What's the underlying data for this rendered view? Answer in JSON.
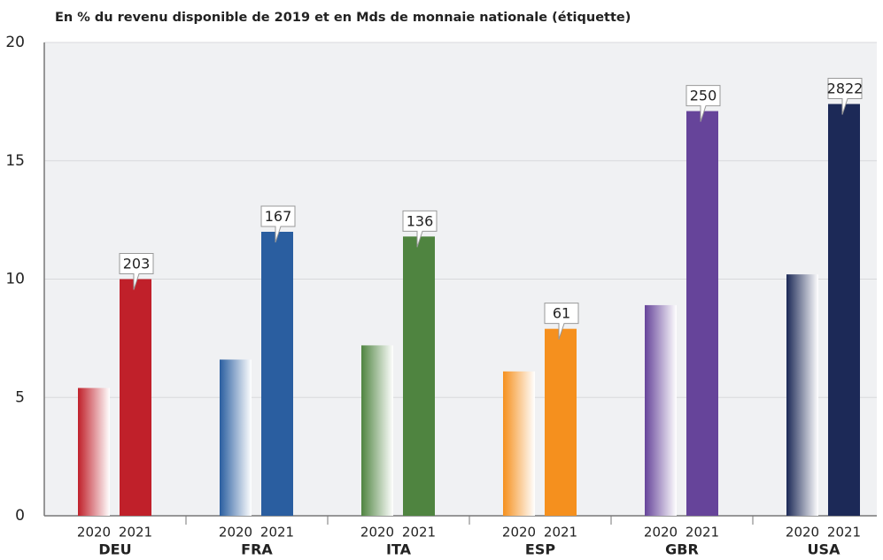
{
  "chart_data": {
    "type": "bar",
    "title": "En % du revenu disponible de 2019 et en Mds de monnaie nationale (étiquette)",
    "categories": [
      "DEU",
      "FRA",
      "ITA",
      "ESP",
      "GBR",
      "USA"
    ],
    "colors": [
      "#c0202a",
      "#2a5ea0",
      "#4f8440",
      "#f5901e",
      "#66449a",
      "#1c2957"
    ],
    "series": [
      {
        "name": "2020",
        "values": [
          5.4,
          6.6,
          7.2,
          6.1,
          8.9,
          10.2
        ]
      },
      {
        "name": "2021",
        "values": [
          10.0,
          12.0,
          11.8,
          7.9,
          17.1,
          17.4
        ],
        "callouts": [
          203,
          167,
          136,
          61,
          250,
          2822
        ]
      }
    ],
    "ylim": [
      0,
      20
    ],
    "yticks": [
      0,
      5,
      10,
      15,
      20
    ],
    "grid": true
  }
}
